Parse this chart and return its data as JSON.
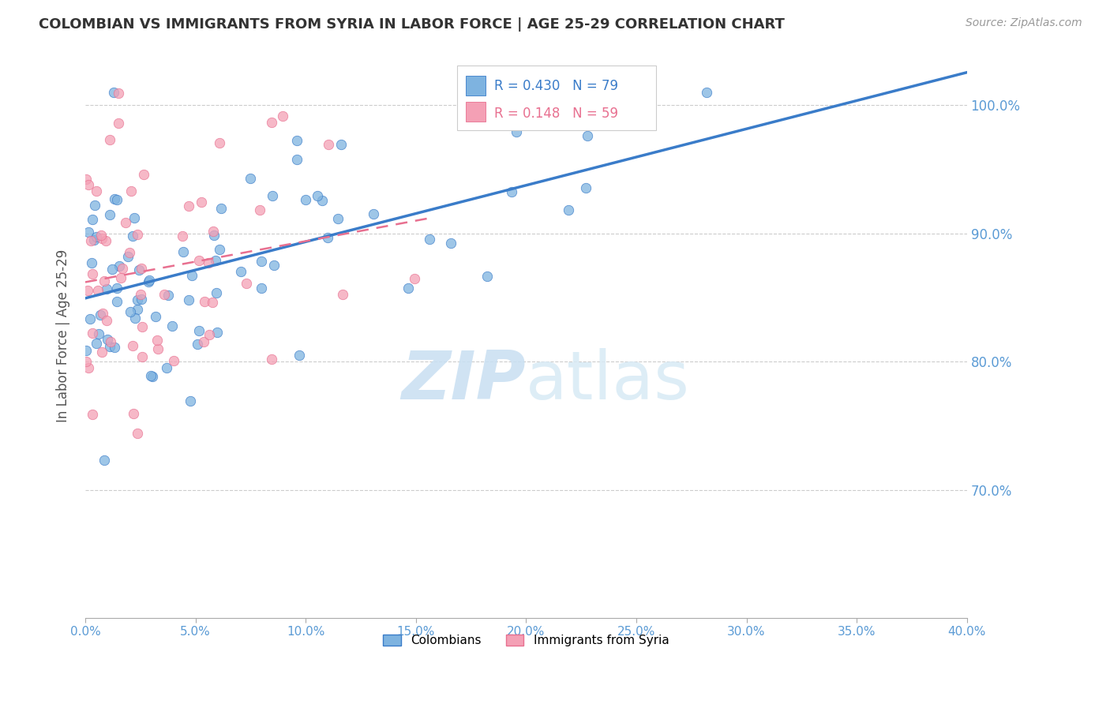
{
  "title": "COLOMBIAN VS IMMIGRANTS FROM SYRIA IN LABOR FORCE | AGE 25-29 CORRELATION CHART",
  "source": "Source: ZipAtlas.com",
  "ylabel": "In Labor Force | Age 25-29",
  "r_colombian": 0.43,
  "n_colombian": 79,
  "r_syrian": 0.148,
  "n_syrian": 59,
  "color_colombian": "#7EB3E0",
  "color_syrian": "#F4A0B5",
  "color_line_colombian": "#3A7CC9",
  "color_line_syrian": "#E87090",
  "color_title": "#333333",
  "color_source": "#999999",
  "color_axis_labels": "#5B9BD5",
  "color_grid": "#CCCCCC",
  "xlim": [
    0.0,
    0.4
  ],
  "ylim": [
    0.6,
    1.04
  ],
  "xtick_vals": [
    0.0,
    0.05,
    0.1,
    0.15,
    0.2,
    0.25,
    0.3,
    0.35,
    0.4
  ],
  "xtick_labels": [
    "0.0%",
    "5.0%",
    "10.0%",
    "15.0%",
    "20.0%",
    "25.0%",
    "30.0%",
    "35.0%",
    "40.0%"
  ],
  "ytick_vals": [
    0.7,
    0.8,
    0.9,
    1.0
  ],
  "ytick_labels": [
    "70.0%",
    "80.0%",
    "90.0%",
    "100.0%"
  ],
  "watermark_zip": "ZIP",
  "watermark_atlas": "atlas",
  "legend_label_colombian": "Colombians",
  "legend_label_syrian": "Immigrants from Syria"
}
